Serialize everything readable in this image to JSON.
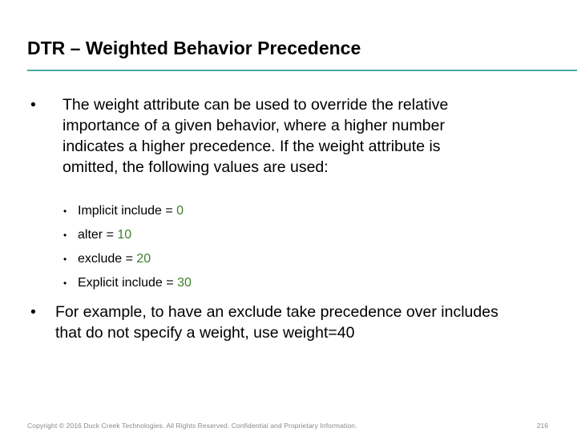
{
  "slide": {
    "title": "DTR – Weighted Behavior Precedence",
    "bullets": [
      {
        "symbol": "•",
        "lines": [
          "The weight attribute can be used to override the relative",
          "importance of a given behavior, where a higher number",
          "indicates a higher precedence.  If the weight attribute is",
          "omitted, the following values are used:"
        ]
      },
      {
        "symbol": "•",
        "lines": [
          "For example, to have an exclude take precedence over includes",
          "that do not specify a weight, use weight=40"
        ]
      }
    ],
    "sub_bullets": [
      {
        "symbol": "•",
        "label": "Implicit include = ",
        "value": "0"
      },
      {
        "symbol": "•",
        "label": "alter = ",
        "value": "10"
      },
      {
        "symbol": "•",
        "label": "exclude = ",
        "value": "20"
      },
      {
        "symbol": "•",
        "label": "Explicit include = ",
        "value": "30"
      }
    ],
    "colors": {
      "rule": "#4aa8a0",
      "value_text": "#3f7f2a",
      "footer_text": "#8a8a8a"
    }
  },
  "footer": {
    "copyright": "Copyright © 2016 Duck Creek Technologies. All Rights Reserved. Confidential and Proprietary Information.",
    "page_number": "216"
  }
}
